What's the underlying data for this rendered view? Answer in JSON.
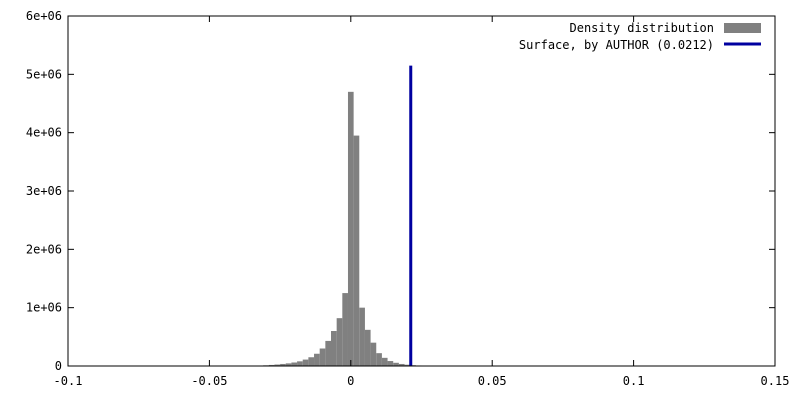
{
  "chart_data": {
    "type": "bar",
    "title": "",
    "xlabel": "",
    "ylabel": "",
    "xlim": [
      -0.1,
      0.15
    ],
    "ylim": [
      0,
      6000000
    ],
    "x_ticks": [
      -0.1,
      -0.05,
      0,
      0.05,
      0.1,
      0.15
    ],
    "x_tick_labels": [
      "-0.1",
      "-0.05",
      "0",
      "0.05",
      "0.1",
      "0.15"
    ],
    "y_ticks": [
      0,
      1000000,
      2000000,
      3000000,
      4000000,
      5000000,
      6000000
    ],
    "y_tick_labels": [
      "0",
      "1e+06",
      "2e+06",
      "3e+06",
      "4e+06",
      "5e+06",
      "6e+06"
    ],
    "grid": false,
    "legend_position": "top-right",
    "series": [
      {
        "name": "Density distribution",
        "type": "histogram",
        "color": "#808080",
        "bin_width": 0.002,
        "bins": [
          {
            "x": -0.034,
            "y": 5000
          },
          {
            "x": -0.032,
            "y": 8000
          },
          {
            "x": -0.03,
            "y": 12000
          },
          {
            "x": -0.028,
            "y": 18000
          },
          {
            "x": -0.026,
            "y": 25000
          },
          {
            "x": -0.024,
            "y": 35000
          },
          {
            "x": -0.022,
            "y": 45000
          },
          {
            "x": -0.02,
            "y": 60000
          },
          {
            "x": -0.018,
            "y": 80000
          },
          {
            "x": -0.016,
            "y": 110000
          },
          {
            "x": -0.014,
            "y": 150000
          },
          {
            "x": -0.012,
            "y": 210000
          },
          {
            "x": -0.01,
            "y": 300000
          },
          {
            "x": -0.008,
            "y": 430000
          },
          {
            "x": -0.006,
            "y": 600000
          },
          {
            "x": -0.004,
            "y": 820000
          },
          {
            "x": -0.002,
            "y": 1250000
          },
          {
            "x": 0.0,
            "y": 4700000
          },
          {
            "x": 0.002,
            "y": 3950000
          },
          {
            "x": 0.004,
            "y": 1000000
          },
          {
            "x": 0.006,
            "y": 620000
          },
          {
            "x": 0.008,
            "y": 400000
          },
          {
            "x": 0.01,
            "y": 220000
          },
          {
            "x": 0.012,
            "y": 140000
          },
          {
            "x": 0.014,
            "y": 85000
          },
          {
            "x": 0.016,
            "y": 55000
          },
          {
            "x": 0.018,
            "y": 35000
          },
          {
            "x": 0.02,
            "y": 22000
          },
          {
            "x": 0.022,
            "y": 14000
          },
          {
            "x": 0.024,
            "y": 9000
          },
          {
            "x": 0.026,
            "y": 6000
          },
          {
            "x": 0.028,
            "y": 4000
          },
          {
            "x": 0.03,
            "y": 3000
          },
          {
            "x": 0.032,
            "y": 2000
          },
          {
            "x": 0.034,
            "y": 8000
          },
          {
            "x": 0.036,
            "y": 2000
          }
        ]
      },
      {
        "name": "Surface, by AUTHOR (0.0212)",
        "type": "vline",
        "color": "#0000a0",
        "x": 0.0212,
        "y_top": 5150000
      }
    ]
  }
}
